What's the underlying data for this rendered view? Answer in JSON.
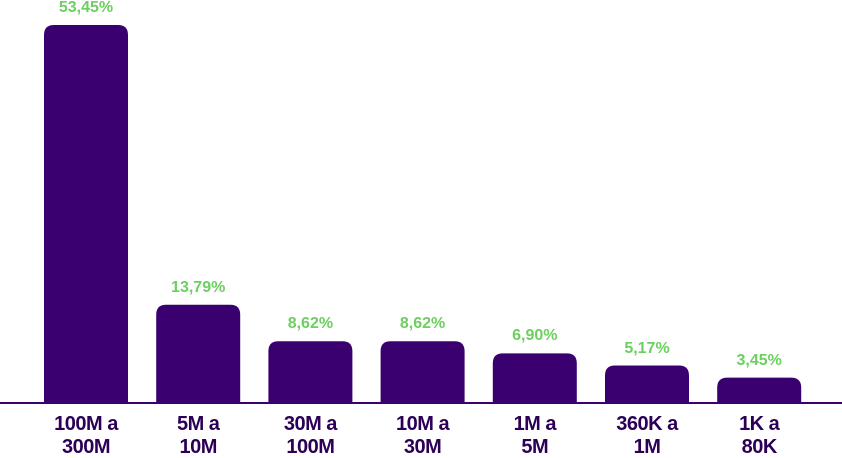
{
  "chart_data": {
    "type": "bar",
    "categories": [
      "100M a 300M",
      "5M a 10M",
      "30M a 100M",
      "10M a 30M",
      "1M a 5M",
      "360K a 1M",
      "1K a 80K"
    ],
    "values": [
      53.45,
      13.79,
      8.62,
      8.62,
      6.9,
      5.17,
      3.45
    ],
    "value_labels": [
      "53,45%",
      "13,79%",
      "8,62%",
      "8,62%",
      "6,90%",
      "5,17%",
      "3,45%"
    ],
    "color": "#3b006f",
    "value_label_color": "#6ccf5f"
  }
}
